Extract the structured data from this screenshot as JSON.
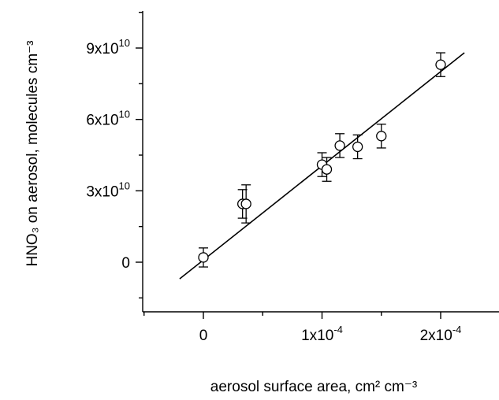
{
  "chart_data": {
    "type": "scatter",
    "xlabel": "aerosol surface area, cm² cm⁻³",
    "ylabel": "HNO₃ on aerosol, molecules cm⁻³",
    "xlim": [
      -5e-05,
      0.00023
    ],
    "ylim": [
      -15000000000.0,
      105000000000.0
    ],
    "x_ticks": [
      {
        "value": 0,
        "label": "0"
      },
      {
        "value": 0.0001,
        "base": "1x10",
        "exp": "-4"
      },
      {
        "value": 0.0002,
        "base": "2x10",
        "exp": "-4"
      }
    ],
    "x_minor_ticks": [
      -5e-05,
      5e-05,
      0.00015
    ],
    "y_ticks": [
      {
        "value": 0,
        "label": "0"
      },
      {
        "value": 30000000000.0,
        "base": "3x10",
        "exp": "10"
      },
      {
        "value": 60000000000.0,
        "base": "6x10",
        "exp": "10"
      },
      {
        "value": 90000000000.0,
        "base": "9x10",
        "exp": "10"
      }
    ],
    "y_minor_ticks": [
      -15000000000.0,
      15000000000.0,
      45000000000.0,
      75000000000.0,
      105000000000.0
    ],
    "points": [
      {
        "x": 0.0,
        "y": 2000000000.0,
        "err": 4000000000.0
      },
      {
        "x": 3.3e-05,
        "y": 24500000000.0,
        "err": 6000000000.0
      },
      {
        "x": 3.6e-05,
        "y": 24500000000.0,
        "err": 8000000000.0
      },
      {
        "x": 0.0001,
        "y": 41000000000.0,
        "err": 5000000000.0
      },
      {
        "x": 0.000104,
        "y": 39000000000.0,
        "err": 5000000000.0
      },
      {
        "x": 0.000115,
        "y": 49000000000.0,
        "err": 5000000000.0
      },
      {
        "x": 0.00013,
        "y": 48500000000.0,
        "err": 5000000000.0
      },
      {
        "x": 0.00015,
        "y": 53000000000.0,
        "err": 5000000000.0
      },
      {
        "x": 0.0002,
        "y": 83000000000.0,
        "err": 5000000000.0
      }
    ],
    "fit_line": {
      "x": [
        -2e-05,
        0.00022
      ],
      "y": [
        -7000000000.0,
        88000000000.0
      ]
    }
  }
}
